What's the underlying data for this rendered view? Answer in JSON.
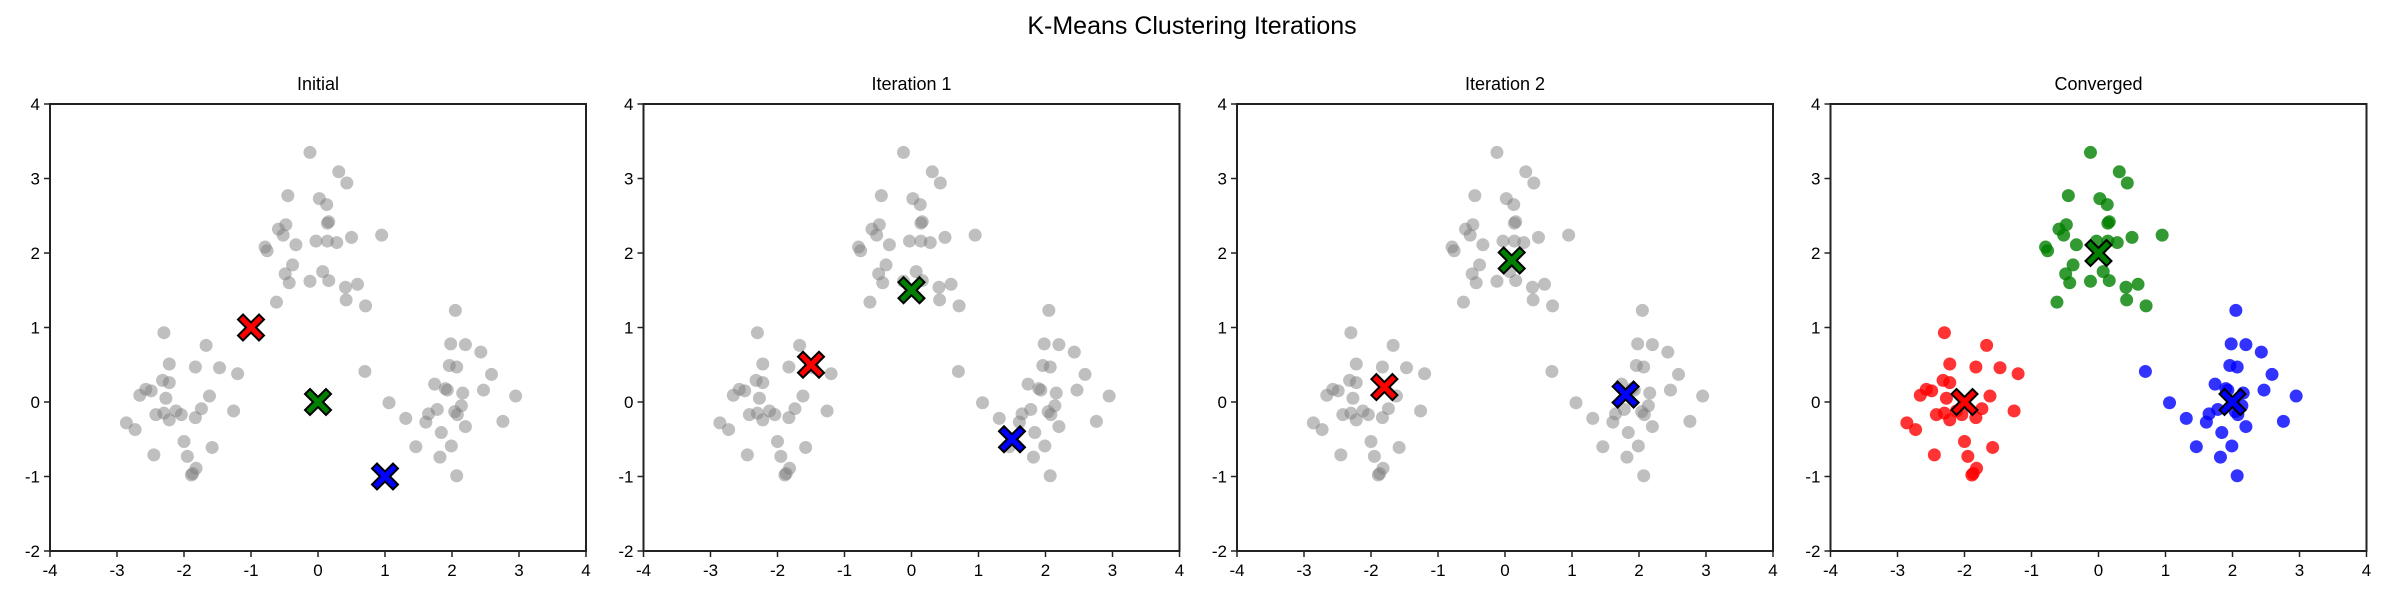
{
  "suptitle": "K-Means Clustering Iterations",
  "chart_data": {
    "type": "scatter",
    "xlim": [
      -4,
      4
    ],
    "ylim": [
      -2,
      4
    ],
    "xticks": [
      -4,
      -3,
      -2,
      -1,
      0,
      1,
      2,
      3,
      4
    ],
    "yticks": [
      -2,
      -1,
      0,
      1,
      2,
      3,
      4
    ],
    "grid": false,
    "cluster_colors": [
      "#ff0000",
      "#008000",
      "#0000ff"
    ],
    "unassigned_color": "#808080",
    "points": [
      [
        -2.3,
        0.93,
        0
      ],
      [
        -1.67,
        0.76,
        0
      ],
      [
        -2.22,
        0.51,
        0
      ],
      [
        -1.83,
        0.47,
        0
      ],
      [
        -1.47,
        0.46,
        0
      ],
      [
        -1.2,
        0.38,
        0
      ],
      [
        -2.32,
        0.29,
        0
      ],
      [
        -2.22,
        0.26,
        0
      ],
      [
        -2.57,
        0.17,
        0
      ],
      [
        -2.49,
        0.15,
        0
      ],
      [
        -2.66,
        0.09,
        0
      ],
      [
        -2.27,
        0.05,
        0
      ],
      [
        -1.62,
        0.08,
        0
      ],
      [
        -1.74,
        -0.09,
        0
      ],
      [
        -2.42,
        -0.17,
        0
      ],
      [
        -2.3,
        -0.15,
        0
      ],
      [
        -2.22,
        -0.24,
        0
      ],
      [
        -2.12,
        -0.12,
        0
      ],
      [
        -2.04,
        -0.17,
        0
      ],
      [
        -1.83,
        -0.21,
        0
      ],
      [
        -1.26,
        -0.12,
        0
      ],
      [
        -2.86,
        -0.28,
        0
      ],
      [
        -2.73,
        -0.37,
        0
      ],
      [
        -2.0,
        -0.53,
        0
      ],
      [
        -1.58,
        -0.61,
        0
      ],
      [
        -2.45,
        -0.71,
        0
      ],
      [
        -1.95,
        -0.73,
        0
      ],
      [
        -1.82,
        -0.89,
        0
      ],
      [
        -1.89,
        -0.98,
        0
      ],
      [
        -1.87,
        -0.96,
        0
      ],
      [
        -0.12,
        3.35,
        1
      ],
      [
        0.31,
        3.09,
        1
      ],
      [
        0.43,
        2.94,
        1
      ],
      [
        -0.45,
        2.77,
        1
      ],
      [
        0.02,
        2.73,
        1
      ],
      [
        0.13,
        2.65,
        1
      ],
      [
        0.14,
        2.4,
        1
      ],
      [
        0.16,
        2.42,
        1
      ],
      [
        -0.48,
        2.38,
        1
      ],
      [
        -0.59,
        2.32,
        1
      ],
      [
        -0.52,
        2.24,
        1
      ],
      [
        0.5,
        2.21,
        1
      ],
      [
        0.95,
        2.24,
        1
      ],
      [
        -0.03,
        2.16,
        1
      ],
      [
        0.14,
        2.16,
        1
      ],
      [
        0.28,
        2.14,
        1
      ],
      [
        -0.33,
        2.11,
        1
      ],
      [
        -0.79,
        2.08,
        1
      ],
      [
        -0.76,
        2.03,
        1
      ],
      [
        -0.38,
        1.84,
        1
      ],
      [
        -0.49,
        1.72,
        1
      ],
      [
        -0.43,
        1.6,
        1
      ],
      [
        -0.12,
        1.62,
        1
      ],
      [
        0.07,
        1.75,
        1
      ],
      [
        0.16,
        1.63,
        1
      ],
      [
        0.41,
        1.54,
        1
      ],
      [
        0.59,
        1.58,
        1
      ],
      [
        0.42,
        1.37,
        1
      ],
      [
        0.71,
        1.29,
        1
      ],
      [
        -0.62,
        1.34,
        1
      ],
      [
        2.05,
        1.23,
        2
      ],
      [
        1.98,
        0.78,
        2
      ],
      [
        2.2,
        0.77,
        2
      ],
      [
        2.43,
        0.67,
        2
      ],
      [
        1.96,
        0.49,
        2
      ],
      [
        2.07,
        0.47,
        2
      ],
      [
        2.59,
        0.37,
        2
      ],
      [
        1.74,
        0.24,
        2
      ],
      [
        1.9,
        0.18,
        2
      ],
      [
        1.93,
        0.16,
        2
      ],
      [
        2.16,
        0.12,
        2
      ],
      [
        2.47,
        0.16,
        2
      ],
      [
        2.95,
        0.08,
        2
      ],
      [
        1.06,
        -0.01,
        2
      ],
      [
        1.78,
        -0.1,
        2
      ],
      [
        1.65,
        -0.16,
        2
      ],
      [
        2.04,
        -0.13,
        2
      ],
      [
        2.08,
        -0.17,
        2
      ],
      [
        2.14,
        -0.05,
        2
      ],
      [
        1.31,
        -0.22,
        2
      ],
      [
        1.61,
        -0.27,
        2
      ],
      [
        2.2,
        -0.33,
        2
      ],
      [
        2.76,
        -0.26,
        2
      ],
      [
        1.84,
        -0.41,
        2
      ],
      [
        1.46,
        -0.6,
        2
      ],
      [
        1.99,
        -0.59,
        2
      ],
      [
        1.82,
        -0.74,
        2
      ],
      [
        2.07,
        -0.99,
        2
      ],
      [
        0.7,
        0.41,
        2
      ]
    ],
    "panels": [
      {
        "title": "Initial",
        "colored": false,
        "centroids": [
          [
            -1,
            1
          ],
          [
            0,
            0
          ],
          [
            1,
            -1
          ]
        ]
      },
      {
        "title": "Iteration 1",
        "colored": false,
        "centroids": [
          [
            -1.5,
            0.5
          ],
          [
            0,
            1.5
          ],
          [
            1.5,
            -0.5
          ]
        ]
      },
      {
        "title": "Iteration 2",
        "colored": false,
        "centroids": [
          [
            -1.8,
            0.2
          ],
          [
            0.1,
            1.9
          ],
          [
            1.8,
            0.1
          ]
        ]
      },
      {
        "title": "Converged",
        "colored": true,
        "centroids": [
          [
            -2,
            0
          ],
          [
            0,
            2
          ],
          [
            2,
            0
          ]
        ]
      }
    ]
  }
}
